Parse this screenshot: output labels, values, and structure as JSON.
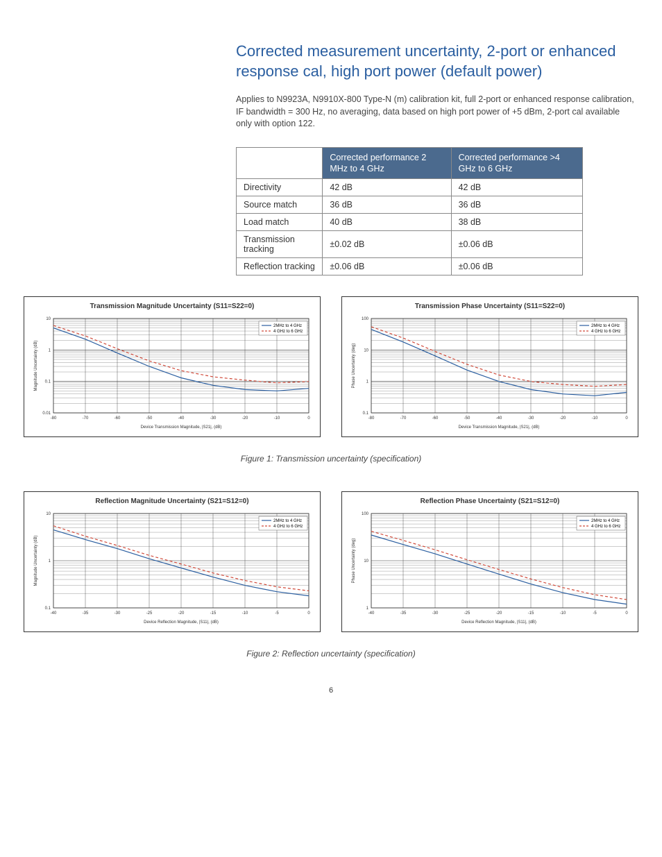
{
  "header": {
    "title": "Corrected measurement uncertainty, 2-port or enhanced response cal, high port power (default power)",
    "description": "Applies to N9923A, N9910X-800 Type-N (m) calibration kit, full 2-port or enhanced response calibration, IF bandwidth = 300 Hz, no averaging, data based on high port power of +5 dBm, 2-port cal available only with option 122."
  },
  "table": {
    "headers": [
      "",
      "Corrected performance 2 MHz to 4 GHz",
      "Corrected performance >4 GHz to 6 GHz"
    ],
    "header_line2": [
      "",
      "2 MHz to 4 GHz",
      ">4 GHz to 6 GHz"
    ],
    "rows": [
      [
        "Directivity",
        "42 dB",
        "42 dB"
      ],
      [
        "Source match",
        "36 dB",
        "36 dB"
      ],
      [
        "Load match",
        "40 dB",
        "38 dB"
      ],
      [
        "Transmission tracking",
        "±0.02 dB",
        "±0.06 dB"
      ],
      [
        "Reflection tracking",
        "±0.06 dB",
        "±0.06 dB"
      ]
    ],
    "header_bg": "#4b6a8e",
    "header_text_color": "#ffffff",
    "border_color": "#888888"
  },
  "charts": {
    "series_colors": {
      "s1": "#2a5ea0",
      "s2": "#d04a3a"
    },
    "legend_labels": [
      "2MHz to 4 GHz",
      "4 GHz to 6 GHz"
    ],
    "grid_color": "#333333",
    "row1": [
      {
        "title": "Transmission Magnitude Uncertainty (S11=S22=0)",
        "xlabel": "Device Transmission Magnitude, |S21|, (dB)",
        "ylabel": "Magnitude Uncertainty (dB)",
        "x_ticks": [
          -80,
          -70,
          -60,
          -50,
          -40,
          -30,
          -20,
          -10,
          0
        ],
        "y_ticks": [
          0.01,
          0.1,
          1,
          10
        ],
        "y_log": true,
        "s1": [
          [
            -80,
            5
          ],
          [
            -70,
            2.2
          ],
          [
            -60,
            0.8
          ],
          [
            -50,
            0.3
          ],
          [
            -40,
            0.13
          ],
          [
            -30,
            0.075
          ],
          [
            -20,
            0.055
          ],
          [
            -10,
            0.05
          ],
          [
            0,
            0.06
          ]
        ],
        "s2": [
          [
            -80,
            6
          ],
          [
            -70,
            2.8
          ],
          [
            -60,
            1.1
          ],
          [
            -50,
            0.45
          ],
          [
            -40,
            0.22
          ],
          [
            -30,
            0.14
          ],
          [
            -20,
            0.11
          ],
          [
            -10,
            0.09
          ],
          [
            0,
            0.1
          ]
        ]
      },
      {
        "title": "Transmission Phase Uncertainty (S11=S22=0)",
        "xlabel": "Device Transmission Magnitude, |S21|, (dB)",
        "ylabel": "Phase Uncertainty (deg)",
        "x_ticks": [
          -80,
          -70,
          -60,
          -50,
          -40,
          -30,
          -20,
          -10,
          0
        ],
        "y_ticks": [
          0.1,
          1,
          10,
          100
        ],
        "y_log": true,
        "s1": [
          [
            -80,
            45
          ],
          [
            -70,
            18
          ],
          [
            -60,
            6.5
          ],
          [
            -50,
            2.3
          ],
          [
            -40,
            1.0
          ],
          [
            -30,
            0.55
          ],
          [
            -20,
            0.4
          ],
          [
            -10,
            0.35
          ],
          [
            0,
            0.45
          ]
        ],
        "s2": [
          [
            -80,
            55
          ],
          [
            -70,
            24
          ],
          [
            -60,
            9
          ],
          [
            -50,
            3.5
          ],
          [
            -40,
            1.6
          ],
          [
            -30,
            1.0
          ],
          [
            -20,
            0.8
          ],
          [
            -10,
            0.7
          ],
          [
            0,
            0.8
          ]
        ]
      }
    ],
    "fig1_caption": "Figure 1: Transmission uncertainty (specification)",
    "row2": [
      {
        "title": "Reflection Magnitude Uncertainty (S21=S12=0)",
        "xlabel": "Device Reflection Magnitude, |S11|, (dB)",
        "ylabel": "Magnitude Uncertainty (dB)",
        "x_ticks": [
          -40,
          -35,
          -30,
          -25,
          -20,
          -15,
          -10,
          -5,
          0
        ],
        "y_ticks": [
          0.1,
          1,
          10
        ],
        "y_log": true,
        "s1": [
          [
            -40,
            4.5
          ],
          [
            -35,
            2.8
          ],
          [
            -30,
            1.8
          ],
          [
            -25,
            1.1
          ],
          [
            -20,
            0.7
          ],
          [
            -15,
            0.45
          ],
          [
            -10,
            0.3
          ],
          [
            -5,
            0.22
          ],
          [
            0,
            0.18
          ]
        ],
        "s2": [
          [
            -40,
            5.5
          ],
          [
            -35,
            3.3
          ],
          [
            -30,
            2.1
          ],
          [
            -25,
            1.3
          ],
          [
            -20,
            0.85
          ],
          [
            -15,
            0.55
          ],
          [
            -10,
            0.38
          ],
          [
            -5,
            0.28
          ],
          [
            0,
            0.23
          ]
        ]
      },
      {
        "title": "Reflection Phase Uncertainty (S21=S12=0)",
        "xlabel": "Device Reflection Magnitude, |S11|, (dB)",
        "ylabel": "Phase Uncertainty (deg)",
        "x_ticks": [
          -40,
          -35,
          -30,
          -25,
          -20,
          -15,
          -10,
          -5,
          0
        ],
        "y_ticks": [
          1,
          10,
          100
        ],
        "y_log": true,
        "s1": [
          [
            -40,
            35
          ],
          [
            -35,
            22
          ],
          [
            -30,
            14
          ],
          [
            -25,
            8.5
          ],
          [
            -20,
            5.2
          ],
          [
            -15,
            3.2
          ],
          [
            -10,
            2.1
          ],
          [
            -5,
            1.5
          ],
          [
            0,
            1.2
          ]
        ],
        "s2": [
          [
            -40,
            42
          ],
          [
            -35,
            27
          ],
          [
            -30,
            17
          ],
          [
            -25,
            10.5
          ],
          [
            -20,
            6.5
          ],
          [
            -15,
            4.1
          ],
          [
            -10,
            2.7
          ],
          [
            -5,
            1.9
          ],
          [
            0,
            1.5
          ]
        ]
      }
    ],
    "fig2_caption": "Figure 2: Reflection uncertainty (specification)"
  },
  "page_number": "6"
}
